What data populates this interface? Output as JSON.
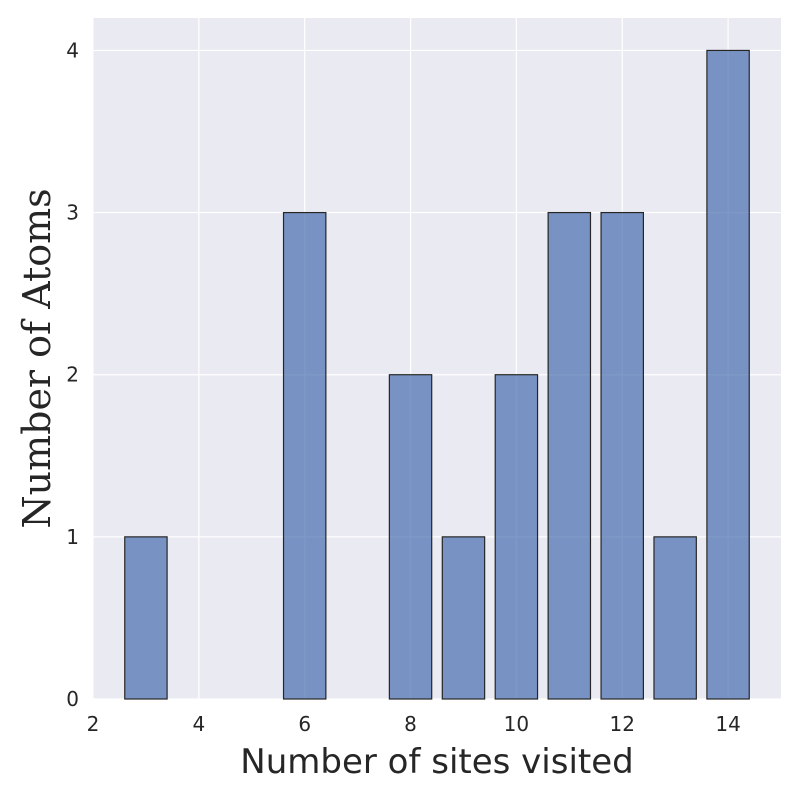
{
  "chart_data": {
    "type": "bar",
    "title": "",
    "xlabel": "Number of sites visited",
    "ylabel": "Number of Atoms",
    "x": [
      3,
      6,
      8,
      9,
      10,
      11,
      12,
      13,
      14
    ],
    "values": [
      1,
      3,
      2,
      1,
      2,
      3,
      3,
      1,
      4
    ],
    "bar_width": 0.8,
    "xlim": [
      2,
      15
    ],
    "ylim": [
      0,
      4.2
    ],
    "xticks": [
      2,
      4,
      6,
      8,
      10,
      12,
      14
    ],
    "yticks": [
      0,
      1,
      2,
      3,
      4
    ],
    "grid": true,
    "colors": {
      "background": "#eaeaf2",
      "grid": "#ffffff",
      "bar_fill": "#4c72b0",
      "bar_edge": "#262626"
    }
  }
}
